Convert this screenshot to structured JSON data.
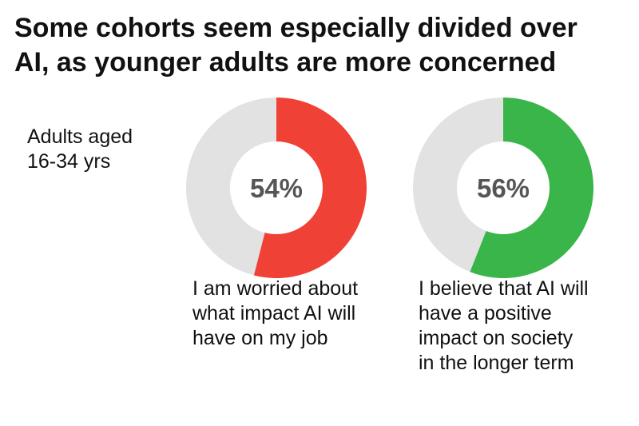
{
  "title_lines": [
    "Some cohorts seem especially divided over",
    "AI, as younger adults are more concerned"
  ],
  "group_label_lines": [
    "Adults aged",
    "16-34 yrs"
  ],
  "chart_data": [
    {
      "type": "pie",
      "value": 54,
      "value_label": "54%",
      "caption_lines": [
        "I am worried about",
        "what impact AI will",
        "have on my job"
      ],
      "color": "#ef4136",
      "remainder_color": "#e2e2e2"
    },
    {
      "type": "pie",
      "value": 56,
      "value_label": "56%",
      "caption_lines": [
        "I believe that AI will",
        "have a positive",
        "impact on society",
        "in the longer term"
      ],
      "color": "#39b54a",
      "remainder_color": "#e2e2e2"
    }
  ]
}
